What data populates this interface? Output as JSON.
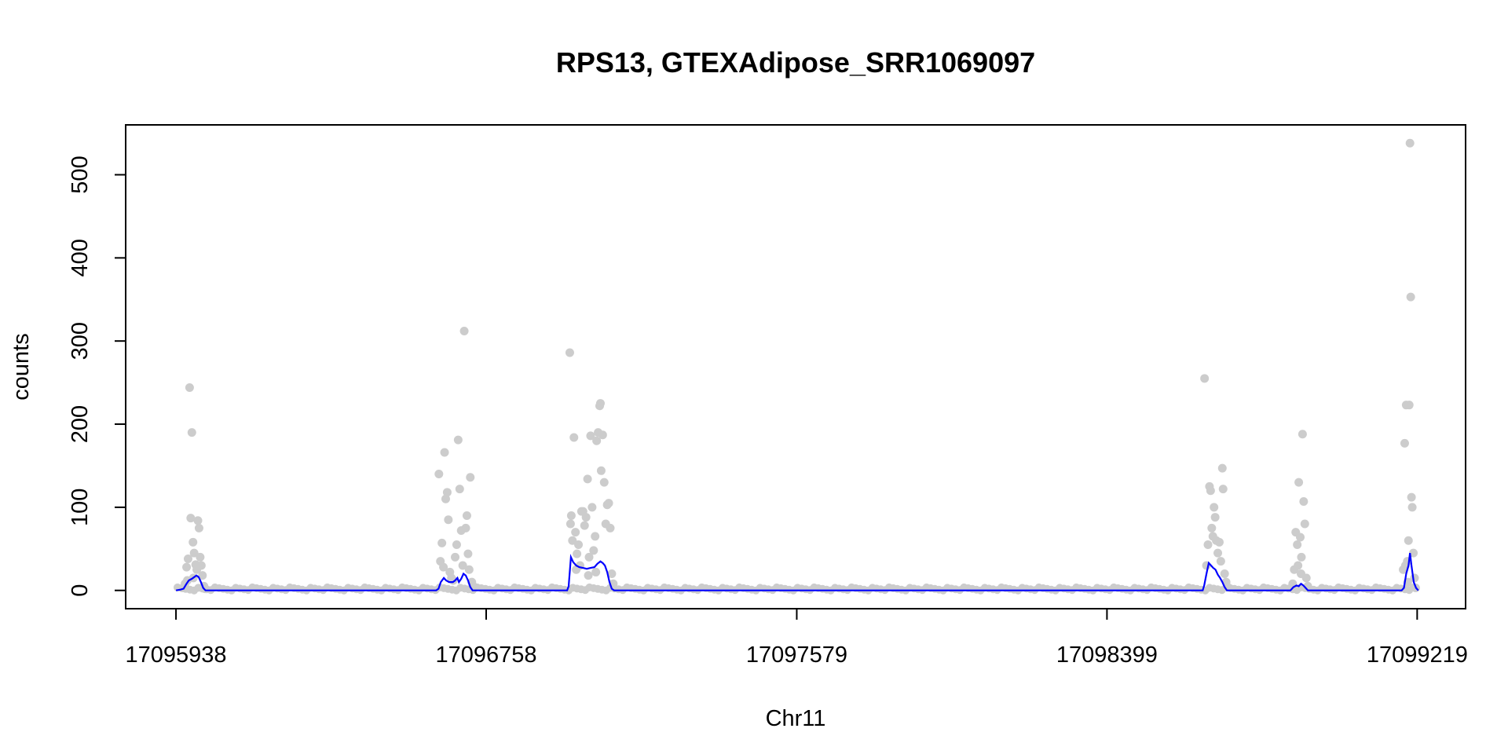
{
  "chart_data": {
    "type": "scatter",
    "title": "RPS13, GTEXAdipose_SRR1069097",
    "xlabel": "Chr11",
    "ylabel": "counts",
    "xlim": [
      17095805,
      17099347
    ],
    "ylim": [
      -22,
      560
    ],
    "x_ticks": [
      17095938,
      17096758,
      17097579,
      17098399,
      17099219
    ],
    "x_tick_labels": [
      "17095938",
      "17096758",
      "17097579",
      "17098399",
      "17099219"
    ],
    "y_ticks": [
      0,
      100,
      200,
      300,
      400,
      500
    ],
    "y_tick_labels": [
      "0",
      "100",
      "200",
      "300",
      "400",
      "500"
    ],
    "grid": false,
    "legend": "none",
    "colors": {
      "points": "#cccccc",
      "line": "#0000ff",
      "axes": "#000000"
    },
    "series": [
      {
        "type": "scatter",
        "points": [
          [
            17095958,
            3
          ],
          [
            17095962,
            8
          ],
          [
            17095966,
            28
          ],
          [
            17095970,
            38
          ],
          [
            17095974,
            244
          ],
          [
            17095977,
            87
          ],
          [
            17095980,
            190
          ],
          [
            17095983,
            58
          ],
          [
            17095986,
            45
          ],
          [
            17095990,
            31
          ],
          [
            17095993,
            25
          ],
          [
            17095996,
            84
          ],
          [
            17095999,
            75
          ],
          [
            17096002,
            40
          ],
          [
            17096005,
            30
          ],
          [
            17096008,
            18
          ],
          [
            17096012,
            5
          ],
          [
            17096015,
            2
          ],
          [
            17095968,
            12
          ],
          [
            17095984,
            15
          ],
          [
            17096633,
            140
          ],
          [
            17096637,
            35
          ],
          [
            17096641,
            57
          ],
          [
            17096645,
            28
          ],
          [
            17096648,
            166
          ],
          [
            17096651,
            110
          ],
          [
            17096655,
            118
          ],
          [
            17096658,
            85
          ],
          [
            17096662,
            22
          ],
          [
            17096666,
            15
          ],
          [
            17096671,
            12
          ],
          [
            17096676,
            40
          ],
          [
            17096680,
            55
          ],
          [
            17096684,
            181
          ],
          [
            17096688,
            122
          ],
          [
            17096692,
            72
          ],
          [
            17096696,
            30
          ],
          [
            17096700,
            312
          ],
          [
            17096704,
            75
          ],
          [
            17096707,
            90
          ],
          [
            17096710,
            44
          ],
          [
            17096713,
            25
          ],
          [
            17096716,
            136
          ],
          [
            17096720,
            10
          ],
          [
            17096724,
            5
          ],
          [
            17096979,
            286
          ],
          [
            17096981,
            80
          ],
          [
            17096983,
            90
          ],
          [
            17096986,
            60
          ],
          [
            17096990,
            184
          ],
          [
            17096994,
            70
          ],
          [
            17096998,
            44
          ],
          [
            17097002,
            55
          ],
          [
            17097006,
            30
          ],
          [
            17097010,
            95
          ],
          [
            17097014,
            95
          ],
          [
            17097018,
            78
          ],
          [
            17097022,
            88
          ],
          [
            17097026,
            134
          ],
          [
            17097030,
            40
          ],
          [
            17097034,
            186
          ],
          [
            17097038,
            100
          ],
          [
            17097042,
            48
          ],
          [
            17097046,
            65
          ],
          [
            17097050,
            180
          ],
          [
            17097054,
            190
          ],
          [
            17097058,
            222
          ],
          [
            17097060,
            225
          ],
          [
            17097062,
            144
          ],
          [
            17097066,
            187
          ],
          [
            17097070,
            130
          ],
          [
            17097074,
            80
          ],
          [
            17097078,
            103
          ],
          [
            17097082,
            105
          ],
          [
            17097086,
            75
          ],
          [
            17097090,
            20
          ],
          [
            17097094,
            8
          ],
          [
            17096996,
            25
          ],
          [
            17097028,
            18
          ],
          [
            17097048,
            22
          ],
          [
            17098657,
            255
          ],
          [
            17098662,
            30
          ],
          [
            17098666,
            55
          ],
          [
            17098670,
            125
          ],
          [
            17098673,
            120
          ],
          [
            17098676,
            75
          ],
          [
            17098679,
            65
          ],
          [
            17098682,
            100
          ],
          [
            17098685,
            88
          ],
          [
            17098688,
            60
          ],
          [
            17098692,
            45
          ],
          [
            17098696,
            58
          ],
          [
            17098700,
            35
          ],
          [
            17098704,
            147
          ],
          [
            17098706,
            122
          ],
          [
            17098710,
            20
          ],
          [
            17098714,
            10
          ],
          [
            17098718,
            4
          ],
          [
            17098890,
            8
          ],
          [
            17098894,
            25
          ],
          [
            17098898,
            70
          ],
          [
            17098902,
            55
          ],
          [
            17098906,
            130
          ],
          [
            17098910,
            64
          ],
          [
            17098913,
            40
          ],
          [
            17098916,
            188
          ],
          [
            17098919,
            107
          ],
          [
            17098922,
            80
          ],
          [
            17098926,
            15
          ],
          [
            17098930,
            5
          ],
          [
            17098904,
            30
          ],
          [
            17098912,
            20
          ],
          [
            17099182,
            25
          ],
          [
            17099186,
            177
          ],
          [
            17099190,
            223
          ],
          [
            17099193,
            35
          ],
          [
            17099196,
            60
          ],
          [
            17099198,
            223
          ],
          [
            17099200,
            538
          ],
          [
            17099202,
            353
          ],
          [
            17099204,
            112
          ],
          [
            17099206,
            100
          ],
          [
            17099209,
            45
          ],
          [
            17099212,
            15
          ],
          [
            17099215,
            3
          ],
          [
            17099188,
            30
          ],
          [
            17099194,
            10
          ]
        ]
      },
      {
        "type": "line",
        "points": [
          [
            17095938,
            0
          ],
          [
            17095950,
            1
          ],
          [
            17095958,
            2
          ],
          [
            17095966,
            8
          ],
          [
            17095972,
            12
          ],
          [
            17095980,
            14
          ],
          [
            17095986,
            16
          ],
          [
            17095992,
            18
          ],
          [
            17095998,
            16
          ],
          [
            17096004,
            10
          ],
          [
            17096010,
            3
          ],
          [
            17096016,
            0
          ],
          [
            17096626,
            0
          ],
          [
            17096632,
            2
          ],
          [
            17096638,
            10
          ],
          [
            17096646,
            15
          ],
          [
            17096652,
            12
          ],
          [
            17096660,
            10
          ],
          [
            17096670,
            10
          ],
          [
            17096676,
            12
          ],
          [
            17096682,
            15
          ],
          [
            17096686,
            10
          ],
          [
            17096692,
            14
          ],
          [
            17096698,
            20
          ],
          [
            17096704,
            18
          ],
          [
            17096710,
            12
          ],
          [
            17096716,
            4
          ],
          [
            17096722,
            0
          ],
          [
            17096972,
            0
          ],
          [
            17096976,
            5
          ],
          [
            17096982,
            40
          ],
          [
            17096988,
            34
          ],
          [
            17096996,
            30
          ],
          [
            17097004,
            28
          ],
          [
            17097014,
            27
          ],
          [
            17097024,
            26
          ],
          [
            17097034,
            27
          ],
          [
            17097044,
            28
          ],
          [
            17097052,
            32
          ],
          [
            17097060,
            35
          ],
          [
            17097066,
            33
          ],
          [
            17097072,
            30
          ],
          [
            17097078,
            22
          ],
          [
            17097084,
            10
          ],
          [
            17097090,
            2
          ],
          [
            17097096,
            0
          ],
          [
            17098652,
            0
          ],
          [
            17098656,
            6
          ],
          [
            17098662,
            20
          ],
          [
            17098668,
            33
          ],
          [
            17098674,
            30
          ],
          [
            17098680,
            27
          ],
          [
            17098686,
            25
          ],
          [
            17098692,
            19
          ],
          [
            17098698,
            15
          ],
          [
            17098704,
            10
          ],
          [
            17098710,
            4
          ],
          [
            17098716,
            0
          ],
          [
            17098884,
            0
          ],
          [
            17098892,
            4
          ],
          [
            17098900,
            6
          ],
          [
            17098906,
            5
          ],
          [
            17098912,
            8
          ],
          [
            17098918,
            6
          ],
          [
            17098924,
            3
          ],
          [
            17098930,
            0
          ],
          [
            17099178,
            0
          ],
          [
            17099184,
            3
          ],
          [
            17099190,
            20
          ],
          [
            17099196,
            30
          ],
          [
            17099200,
            45
          ],
          [
            17099204,
            30
          ],
          [
            17099210,
            10
          ],
          [
            17099216,
            3
          ],
          [
            17099222,
            0
          ]
        ]
      }
    ]
  }
}
